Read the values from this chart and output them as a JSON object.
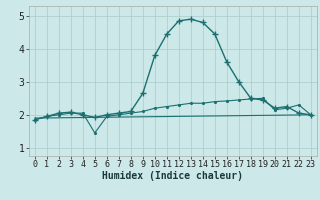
{
  "xlabel": "Humidex (Indice chaleur)",
  "xlim": [
    -0.5,
    23.5
  ],
  "ylim": [
    0.75,
    5.3
  ],
  "yticks": [
    1,
    2,
    3,
    4,
    5
  ],
  "xticks": [
    0,
    1,
    2,
    3,
    4,
    5,
    6,
    7,
    8,
    9,
    10,
    11,
    12,
    13,
    14,
    15,
    16,
    17,
    18,
    19,
    20,
    21,
    22,
    23
  ],
  "bg_color": "#cce8e8",
  "grid_color": "#aacccc",
  "line_color": "#1a7070",
  "line1_x": [
    0,
    1,
    2,
    3,
    4,
    5,
    6,
    7,
    8,
    9,
    10,
    11,
    12,
    13,
    14,
    15,
    16,
    17,
    18,
    19,
    20,
    21,
    22,
    23
  ],
  "line1_y": [
    1.85,
    1.95,
    2.05,
    2.08,
    2.0,
    1.92,
    2.0,
    2.05,
    2.1,
    2.65,
    3.8,
    4.45,
    4.85,
    4.9,
    4.8,
    4.45,
    3.6,
    3.0,
    2.5,
    2.45,
    2.2,
    2.25,
    2.05,
    2.0
  ],
  "line2_x": [
    0,
    1,
    2,
    3,
    4,
    5,
    6,
    7,
    8,
    9,
    10,
    11,
    12,
    13,
    14,
    15,
    16,
    17,
    18,
    19,
    20,
    21,
    22,
    23
  ],
  "line2_y": [
    1.85,
    1.95,
    2.0,
    2.05,
    2.05,
    1.45,
    1.95,
    2.0,
    2.05,
    2.1,
    2.2,
    2.25,
    2.3,
    2.35,
    2.35,
    2.4,
    2.42,
    2.45,
    2.48,
    2.5,
    2.15,
    2.2,
    2.3,
    2.0
  ],
  "line3_x": [
    0,
    23
  ],
  "line3_y": [
    1.9,
    2.0
  ],
  "font_size_ticks": 6,
  "font_size_xlabel": 7
}
